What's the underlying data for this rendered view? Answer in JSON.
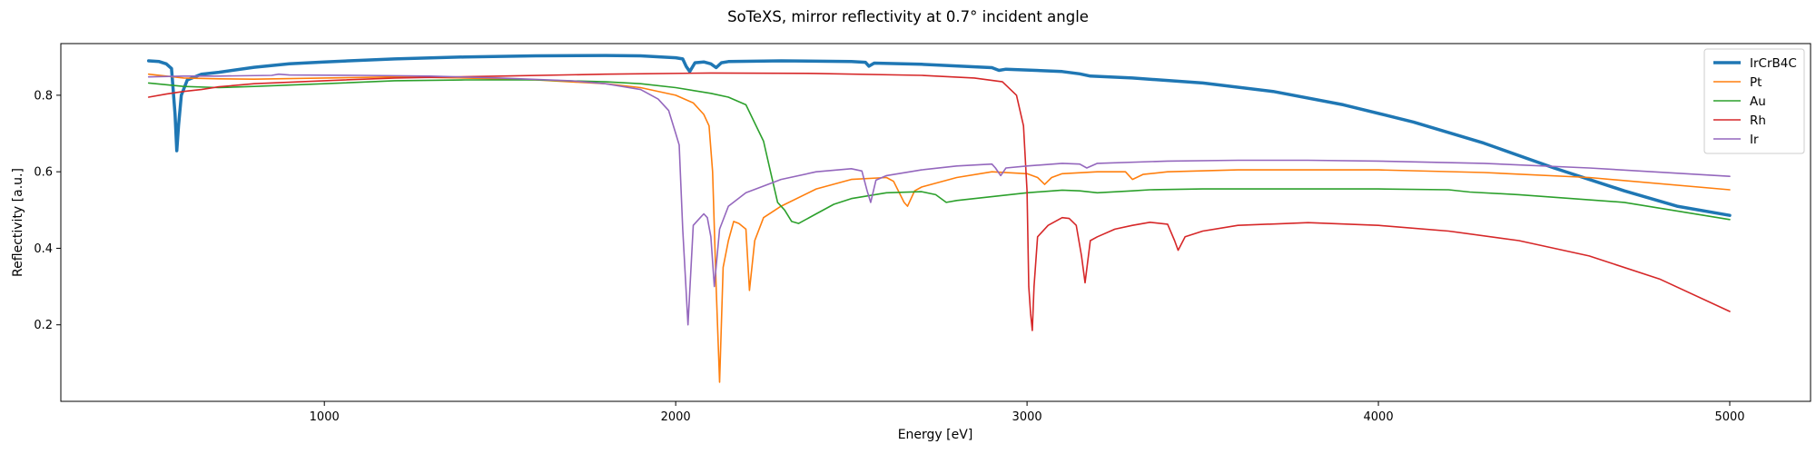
{
  "chart_data": {
    "type": "line",
    "title": "SoTeXS, mirror reflectivity at 0.7° incident angle",
    "xlabel": "Energy [eV]",
    "ylabel": "Reflectivity [a.u.]",
    "xlim": [
      250,
      5230
    ],
    "ylim": [
      0.0,
      0.935
    ],
    "xticks": [
      1000,
      2000,
      3000,
      4000,
      5000
    ],
    "yticks": [
      0.2,
      0.4,
      0.6,
      0.8
    ],
    "grid": false,
    "legend_position": "top-right",
    "series": [
      {
        "name": "IrCrB4C",
        "color": "#1f77b4",
        "linewidth": 3.5,
        "points": [
          [
            500,
            0.89
          ],
          [
            530,
            0.888
          ],
          [
            550,
            0.882
          ],
          [
            565,
            0.87
          ],
          [
            575,
            0.75
          ],
          [
            580,
            0.655
          ],
          [
            585,
            0.72
          ],
          [
            593,
            0.8
          ],
          [
            610,
            0.84
          ],
          [
            650,
            0.855
          ],
          [
            700,
            0.86
          ],
          [
            800,
            0.873
          ],
          [
            900,
            0.882
          ],
          [
            1000,
            0.887
          ],
          [
            1200,
            0.895
          ],
          [
            1400,
            0.9
          ],
          [
            1600,
            0.903
          ],
          [
            1800,
            0.904
          ],
          [
            1900,
            0.903
          ],
          [
            2000,
            0.898
          ],
          [
            2020,
            0.895
          ],
          [
            2030,
            0.875
          ],
          [
            2040,
            0.862
          ],
          [
            2055,
            0.885
          ],
          [
            2080,
            0.887
          ],
          [
            2100,
            0.882
          ],
          [
            2115,
            0.872
          ],
          [
            2130,
            0.885
          ],
          [
            2150,
            0.888
          ],
          [
            2300,
            0.89
          ],
          [
            2500,
            0.888
          ],
          [
            2540,
            0.886
          ],
          [
            2550,
            0.876
          ],
          [
            2565,
            0.884
          ],
          [
            2700,
            0.881
          ],
          [
            2900,
            0.872
          ],
          [
            2920,
            0.865
          ],
          [
            2940,
            0.868
          ],
          [
            3000,
            0.866
          ],
          [
            3100,
            0.862
          ],
          [
            3150,
            0.856
          ],
          [
            3180,
            0.85
          ],
          [
            3300,
            0.845
          ],
          [
            3500,
            0.832
          ],
          [
            3700,
            0.81
          ],
          [
            3900,
            0.775
          ],
          [
            4100,
            0.73
          ],
          [
            4300,
            0.675
          ],
          [
            4500,
            0.61
          ],
          [
            4700,
            0.55
          ],
          [
            4850,
            0.51
          ],
          [
            5000,
            0.486
          ]
        ]
      },
      {
        "name": "Pt",
        "color": "#ff7f0e",
        "linewidth": 1.6,
        "points": [
          [
            500,
            0.855
          ],
          [
            550,
            0.85
          ],
          [
            600,
            0.845
          ],
          [
            700,
            0.843
          ],
          [
            800,
            0.842
          ],
          [
            1000,
            0.845
          ],
          [
            1200,
            0.848
          ],
          [
            1400,
            0.845
          ],
          [
            1600,
            0.84
          ],
          [
            1800,
            0.83
          ],
          [
            1900,
            0.82
          ],
          [
            2000,
            0.8
          ],
          [
            2050,
            0.78
          ],
          [
            2080,
            0.75
          ],
          [
            2095,
            0.72
          ],
          [
            2105,
            0.6
          ],
          [
            2115,
            0.3
          ],
          [
            2125,
            0.05
          ],
          [
            2135,
            0.35
          ],
          [
            2150,
            0.42
          ],
          [
            2165,
            0.47
          ],
          [
            2180,
            0.465
          ],
          [
            2200,
            0.45
          ],
          [
            2210,
            0.29
          ],
          [
            2225,
            0.42
          ],
          [
            2250,
            0.48
          ],
          [
            2300,
            0.51
          ],
          [
            2400,
            0.555
          ],
          [
            2500,
            0.58
          ],
          [
            2600,
            0.585
          ],
          [
            2620,
            0.575
          ],
          [
            2650,
            0.52
          ],
          [
            2660,
            0.51
          ],
          [
            2680,
            0.55
          ],
          [
            2700,
            0.56
          ],
          [
            2800,
            0.585
          ],
          [
            2900,
            0.6
          ],
          [
            3000,
            0.595
          ],
          [
            3030,
            0.585
          ],
          [
            3050,
            0.567
          ],
          [
            3070,
            0.585
          ],
          [
            3100,
            0.595
          ],
          [
            3200,
            0.6
          ],
          [
            3280,
            0.6
          ],
          [
            3300,
            0.58
          ],
          [
            3330,
            0.593
          ],
          [
            3400,
            0.6
          ],
          [
            3600,
            0.605
          ],
          [
            3800,
            0.605
          ],
          [
            4000,
            0.605
          ],
          [
            4300,
            0.598
          ],
          [
            4600,
            0.585
          ],
          [
            5000,
            0.553
          ]
        ]
      },
      {
        "name": "Au",
        "color": "#2ca02c",
        "linewidth": 1.6,
        "points": [
          [
            500,
            0.832
          ],
          [
            600,
            0.823
          ],
          [
            700,
            0.82
          ],
          [
            800,
            0.823
          ],
          [
            1000,
            0.83
          ],
          [
            1200,
            0.838
          ],
          [
            1400,
            0.84
          ],
          [
            1600,
            0.84
          ],
          [
            1800,
            0.835
          ],
          [
            1900,
            0.83
          ],
          [
            2000,
            0.82
          ],
          [
            2100,
            0.805
          ],
          [
            2150,
            0.795
          ],
          [
            2200,
            0.775
          ],
          [
            2250,
            0.68
          ],
          [
            2270,
            0.6
          ],
          [
            2290,
            0.52
          ],
          [
            2310,
            0.5
          ],
          [
            2330,
            0.47
          ],
          [
            2350,
            0.465
          ],
          [
            2400,
            0.49
          ],
          [
            2450,
            0.515
          ],
          [
            2500,
            0.53
          ],
          [
            2600,
            0.545
          ],
          [
            2700,
            0.548
          ],
          [
            2740,
            0.54
          ],
          [
            2770,
            0.52
          ],
          [
            2800,
            0.525
          ],
          [
            2900,
            0.535
          ],
          [
            3000,
            0.545
          ],
          [
            3100,
            0.552
          ],
          [
            3150,
            0.55
          ],
          [
            3200,
            0.545
          ],
          [
            3300,
            0.55
          ],
          [
            3350,
            0.553
          ],
          [
            3500,
            0.555
          ],
          [
            3800,
            0.555
          ],
          [
            4000,
            0.555
          ],
          [
            4200,
            0.553
          ],
          [
            4260,
            0.547
          ],
          [
            4400,
            0.54
          ],
          [
            4700,
            0.52
          ],
          [
            5000,
            0.475
          ]
        ]
      },
      {
        "name": "Rh",
        "color": "#d62728",
        "linewidth": 1.6,
        "points": [
          [
            500,
            0.795
          ],
          [
            550,
            0.803
          ],
          [
            600,
            0.81
          ],
          [
            650,
            0.815
          ],
          [
            700,
            0.822
          ],
          [
            800,
            0.83
          ],
          [
            1000,
            0.838
          ],
          [
            1200,
            0.845
          ],
          [
            1500,
            0.85
          ],
          [
            1800,
            0.855
          ],
          [
            2100,
            0.858
          ],
          [
            2400,
            0.857
          ],
          [
            2700,
            0.852
          ],
          [
            2850,
            0.845
          ],
          [
            2930,
            0.835
          ],
          [
            2970,
            0.8
          ],
          [
            2990,
            0.72
          ],
          [
            3000,
            0.55
          ],
          [
            3005,
            0.3
          ],
          [
            3010,
            0.23
          ],
          [
            3015,
            0.185
          ],
          [
            3020,
            0.3
          ],
          [
            3030,
            0.43
          ],
          [
            3060,
            0.46
          ],
          [
            3100,
            0.48
          ],
          [
            3120,
            0.478
          ],
          [
            3140,
            0.46
          ],
          [
            3155,
            0.38
          ],
          [
            3165,
            0.31
          ],
          [
            3180,
            0.42
          ],
          [
            3200,
            0.43
          ],
          [
            3250,
            0.45
          ],
          [
            3300,
            0.46
          ],
          [
            3350,
            0.468
          ],
          [
            3400,
            0.463
          ],
          [
            3420,
            0.42
          ],
          [
            3430,
            0.395
          ],
          [
            3450,
            0.43
          ],
          [
            3500,
            0.445
          ],
          [
            3600,
            0.46
          ],
          [
            3800,
            0.467
          ],
          [
            4000,
            0.46
          ],
          [
            4200,
            0.445
          ],
          [
            4400,
            0.42
          ],
          [
            4600,
            0.38
          ],
          [
            4800,
            0.32
          ],
          [
            5000,
            0.235
          ]
        ]
      },
      {
        "name": "Ir",
        "color": "#9467bd",
        "linewidth": 1.6,
        "points": [
          [
            500,
            0.848
          ],
          [
            600,
            0.85
          ],
          [
            700,
            0.85
          ],
          [
            850,
            0.852
          ],
          [
            870,
            0.855
          ],
          [
            900,
            0.853
          ],
          [
            1100,
            0.852
          ],
          [
            1300,
            0.85
          ],
          [
            1500,
            0.845
          ],
          [
            1700,
            0.838
          ],
          [
            1800,
            0.83
          ],
          [
            1900,
            0.815
          ],
          [
            1950,
            0.79
          ],
          [
            1980,
            0.76
          ],
          [
            2000,
            0.7
          ],
          [
            2010,
            0.67
          ],
          [
            2020,
            0.45
          ],
          [
            2035,
            0.2
          ],
          [
            2050,
            0.46
          ],
          [
            2070,
            0.48
          ],
          [
            2080,
            0.49
          ],
          [
            2090,
            0.48
          ],
          [
            2100,
            0.43
          ],
          [
            2110,
            0.3
          ],
          [
            2125,
            0.45
          ],
          [
            2150,
            0.51
          ],
          [
            2200,
            0.545
          ],
          [
            2300,
            0.58
          ],
          [
            2400,
            0.6
          ],
          [
            2500,
            0.608
          ],
          [
            2530,
            0.602
          ],
          [
            2545,
            0.55
          ],
          [
            2555,
            0.52
          ],
          [
            2570,
            0.578
          ],
          [
            2600,
            0.59
          ],
          [
            2700,
            0.605
          ],
          [
            2800,
            0.615
          ],
          [
            2900,
            0.62
          ],
          [
            2910,
            0.61
          ],
          [
            2925,
            0.59
          ],
          [
            2940,
            0.61
          ],
          [
            3000,
            0.615
          ],
          [
            3100,
            0.622
          ],
          [
            3150,
            0.62
          ],
          [
            3170,
            0.61
          ],
          [
            3200,
            0.622
          ],
          [
            3400,
            0.628
          ],
          [
            3600,
            0.63
          ],
          [
            3800,
            0.63
          ],
          [
            4000,
            0.628
          ],
          [
            4300,
            0.622
          ],
          [
            4600,
            0.61
          ],
          [
            5000,
            0.588
          ]
        ]
      }
    ]
  }
}
